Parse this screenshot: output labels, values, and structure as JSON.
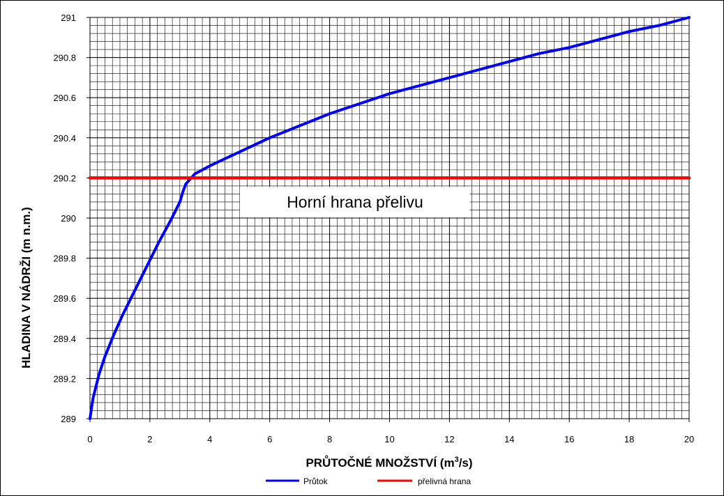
{
  "chart_data": {
    "type": "line",
    "xlabel_main": "PRŮTOČNÉ MNOŽSTVÍ (m",
    "xlabel_sup": "3",
    "xlabel_tail": "/s)",
    "ylabel": "HLADINA V NÁDRŽI (m n.m.)",
    "xlim": [
      0,
      20
    ],
    "ylim": [
      289,
      291
    ],
    "xticks": [
      0,
      2,
      4,
      6,
      8,
      10,
      12,
      14,
      16,
      18,
      20
    ],
    "xtick_labels": [
      "0",
      "2",
      "4",
      "6",
      "8",
      "10",
      "12",
      "14",
      "16",
      "18",
      "20"
    ],
    "yticks": [
      289,
      289.2,
      289.4,
      289.6,
      289.8,
      290,
      290.2,
      290.4,
      290.6,
      290.8,
      291
    ],
    "ytick_labels": [
      "289",
      "289.2",
      "289.4",
      "289.6",
      "289.8",
      "290",
      "290.2",
      "290.4",
      "290.6",
      "290.8",
      "291"
    ],
    "grid": true,
    "legend_position": "bottom",
    "annotation": "Horní hrana přelivu",
    "series": [
      {
        "name": "Průtok",
        "color": "#0000ff",
        "x": [
          0,
          0.1,
          0.3,
          0.5,
          0.8,
          1.1,
          1.5,
          1.9,
          2.3,
          2.7,
          3.0,
          3.1,
          3.2,
          3.5,
          4.0,
          5.0,
          6.0,
          7.0,
          8.0,
          9.0,
          10.0,
          11.0,
          12.0,
          13.0,
          14.0,
          15.0,
          16.0,
          17.0,
          18.0,
          19.0,
          20.0
        ],
        "y": [
          289.0,
          289.1,
          289.22,
          289.31,
          289.42,
          289.52,
          289.64,
          289.76,
          289.88,
          289.99,
          290.08,
          290.13,
          290.17,
          290.22,
          290.26,
          290.33,
          290.4,
          290.46,
          290.52,
          290.57,
          290.62,
          290.66,
          290.7,
          290.74,
          290.78,
          290.82,
          290.85,
          290.89,
          290.93,
          290.96,
          291.0
        ]
      },
      {
        "name": "přelivná hrana",
        "color": "#ff0000",
        "x": [
          0,
          20
        ],
        "y": [
          290.2,
          290.2
        ]
      }
    ]
  }
}
